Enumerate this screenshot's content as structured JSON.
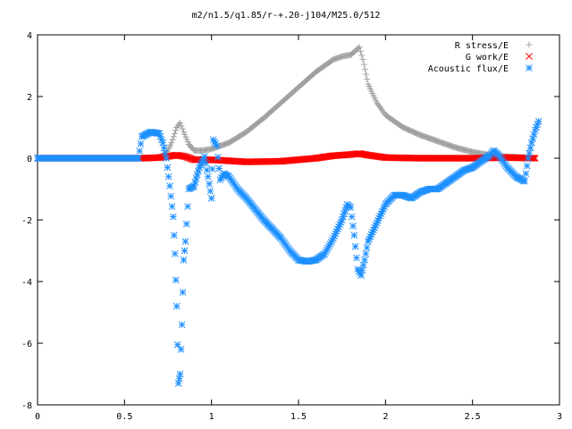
{
  "chart_data": {
    "type": "scatter",
    "title": "m2/n1.5/q1.85/r-+.20-j104/M25.0/512",
    "xlabel": "",
    "ylabel": "",
    "xlim": [
      0,
      3
    ],
    "ylim": [
      -8,
      4
    ],
    "x_ticks": [
      "0",
      "0.5",
      "1",
      "1.5",
      "2",
      "2.5",
      "3"
    ],
    "y_ticks": [
      "4",
      "2",
      "0",
      "-2",
      "-4",
      "-6",
      "-8"
    ],
    "grid": false,
    "legend_position": "top-right",
    "series": [
      {
        "name": "R stress/E",
        "marker": "plus",
        "color": "#a0a0a0",
        "points": [
          [
            0.0,
            0.0
          ],
          [
            0.2,
            0.0
          ],
          [
            0.4,
            0.0
          ],
          [
            0.6,
            0.0
          ],
          [
            0.7,
            0.02
          ],
          [
            0.74,
            0.15
          ],
          [
            0.77,
            0.5
          ],
          [
            0.8,
            1.0
          ],
          [
            0.82,
            1.15
          ],
          [
            0.84,
            0.85
          ],
          [
            0.87,
            0.45
          ],
          [
            0.9,
            0.25
          ],
          [
            0.95,
            0.25
          ],
          [
            1.0,
            0.3
          ],
          [
            1.1,
            0.5
          ],
          [
            1.2,
            0.85
          ],
          [
            1.3,
            1.3
          ],
          [
            1.4,
            1.8
          ],
          [
            1.5,
            2.3
          ],
          [
            1.6,
            2.8
          ],
          [
            1.7,
            3.2
          ],
          [
            1.75,
            3.3
          ],
          [
            1.8,
            3.35
          ],
          [
            1.83,
            3.5
          ],
          [
            1.85,
            3.6
          ],
          [
            1.87,
            3.2
          ],
          [
            1.9,
            2.4
          ],
          [
            1.95,
            1.8
          ],
          [
            2.0,
            1.4
          ],
          [
            2.1,
            1.0
          ],
          [
            2.2,
            0.75
          ],
          [
            2.3,
            0.55
          ],
          [
            2.4,
            0.35
          ],
          [
            2.5,
            0.2
          ],
          [
            2.6,
            0.1
          ],
          [
            2.7,
            0.05
          ],
          [
            2.8,
            0.02
          ],
          [
            2.86,
            0.0
          ]
        ]
      },
      {
        "name": "G work/E",
        "marker": "cross",
        "color": "#ff0000",
        "points": [
          [
            0.0,
            0.0
          ],
          [
            0.3,
            0.0
          ],
          [
            0.6,
            0.0
          ],
          [
            0.7,
            0.02
          ],
          [
            0.8,
            0.1
          ],
          [
            0.85,
            0.05
          ],
          [
            0.9,
            -0.05
          ],
          [
            1.0,
            -0.05
          ],
          [
            1.2,
            -0.12
          ],
          [
            1.4,
            -0.1
          ],
          [
            1.6,
            0.0
          ],
          [
            1.7,
            0.08
          ],
          [
            1.8,
            0.12
          ],
          [
            1.85,
            0.15
          ],
          [
            1.9,
            0.1
          ],
          [
            2.0,
            0.02
          ],
          [
            2.2,
            0.0
          ],
          [
            2.5,
            0.0
          ],
          [
            2.7,
            0.02
          ],
          [
            2.86,
            0.0
          ]
        ]
      },
      {
        "name": "Acoustic flux/E",
        "marker": "star",
        "color": "#1e90ff",
        "points": [
          [
            0.0,
            0.0
          ],
          [
            0.1,
            0.0
          ],
          [
            0.2,
            0.0
          ],
          [
            0.3,
            0.0
          ],
          [
            0.4,
            0.0
          ],
          [
            0.5,
            0.0
          ],
          [
            0.58,
            0.0
          ],
          [
            0.6,
            0.7
          ],
          [
            0.65,
            0.85
          ],
          [
            0.7,
            0.8
          ],
          [
            0.72,
            0.5
          ],
          [
            0.74,
            0.0
          ],
          [
            0.76,
            -0.9
          ],
          [
            0.78,
            -1.9
          ],
          [
            0.79,
            -3.1
          ],
          [
            0.8,
            -4.8
          ],
          [
            0.81,
            -7.3
          ],
          [
            0.82,
            -7.0
          ],
          [
            0.83,
            -5.4
          ],
          [
            0.84,
            -3.3
          ],
          [
            0.85,
            -2.7
          ],
          [
            0.87,
            -1.0
          ],
          [
            0.9,
            -0.9
          ],
          [
            0.93,
            -0.3
          ],
          [
            0.96,
            0.05
          ],
          [
            0.98,
            -0.6
          ],
          [
            1.0,
            -1.3
          ],
          [
            1.01,
            0.6
          ],
          [
            1.03,
            0.4
          ],
          [
            1.05,
            -0.7
          ],
          [
            1.07,
            -0.5
          ],
          [
            1.1,
            -0.6
          ],
          [
            1.15,
            -1.0
          ],
          [
            1.2,
            -1.3
          ],
          [
            1.3,
            -2.0
          ],
          [
            1.4,
            -2.6
          ],
          [
            1.45,
            -3.0
          ],
          [
            1.5,
            -3.3
          ],
          [
            1.55,
            -3.35
          ],
          [
            1.6,
            -3.3
          ],
          [
            1.65,
            -3.1
          ],
          [
            1.7,
            -2.6
          ],
          [
            1.75,
            -2.0
          ],
          [
            1.78,
            -1.5
          ],
          [
            1.8,
            -1.6
          ],
          [
            1.82,
            -2.5
          ],
          [
            1.84,
            -3.6
          ],
          [
            1.86,
            -3.8
          ],
          [
            1.88,
            -3.3
          ],
          [
            1.9,
            -2.7
          ],
          [
            1.95,
            -2.1
          ],
          [
            2.0,
            -1.5
          ],
          [
            2.05,
            -1.2
          ],
          [
            2.1,
            -1.2
          ],
          [
            2.15,
            -1.3
          ],
          [
            2.2,
            -1.1
          ],
          [
            2.25,
            -1.0
          ],
          [
            2.3,
            -1.0
          ],
          [
            2.35,
            -0.8
          ],
          [
            2.4,
            -0.6
          ],
          [
            2.45,
            -0.4
          ],
          [
            2.5,
            -0.3
          ],
          [
            2.55,
            -0.1
          ],
          [
            2.6,
            0.1
          ],
          [
            2.62,
            0.25
          ],
          [
            2.65,
            0.1
          ],
          [
            2.7,
            -0.3
          ],
          [
            2.75,
            -0.6
          ],
          [
            2.8,
            -0.75
          ],
          [
            2.82,
            0.0
          ],
          [
            2.84,
            0.5
          ],
          [
            2.86,
            0.9
          ],
          [
            2.88,
            1.2
          ]
        ]
      }
    ]
  }
}
